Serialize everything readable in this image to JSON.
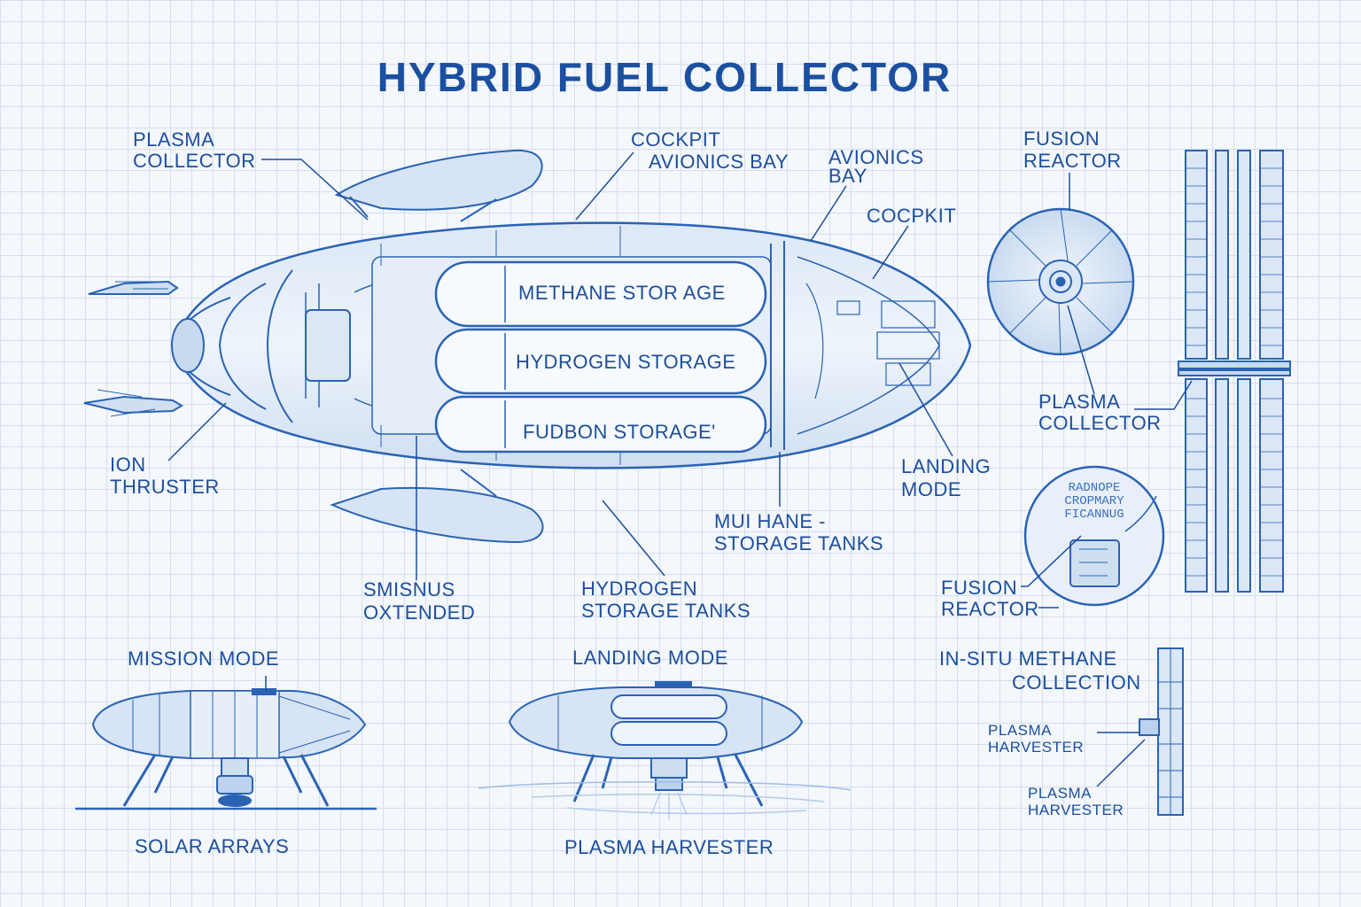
{
  "title": "HYBRID FUEL COLLECTOR",
  "labels": {
    "plasma_collector_1": "PLASMA",
    "plasma_collector_2": "COLLECTOR",
    "cockpit_avionics_1": "COCKPIT",
    "cockpit_avionics_2": "AVIONICS BAY",
    "avionics_bay_1": "AVIONICS",
    "avionics_bay_2": "BAY",
    "cocpkit": "COCPKIT",
    "fusion_reactor_top_1": "FUSION",
    "fusion_reactor_top_2": "REACTOR",
    "plasma_collector_right_1": "PLASMA",
    "plasma_collector_right_2": "COLLECTOR",
    "ion_thruster_1": "ION",
    "ion_thruster_2": "THRUSTER",
    "landing_mode_right_1": "LANDING",
    "landing_mode_right_2": "MODE",
    "methane_tanks_1": "MUI HANE -",
    "methane_tanks_2": "STORAGE TANKS",
    "smisnus_1": "SMISNUS",
    "smisnus_2": "OXTENDED",
    "hydrogen_tanks_1": "HYDROGEN",
    "hydrogen_tanks_2": "STORAGE TANKS",
    "fusion_reactor_bottom_1": "FUSION",
    "fusion_reactor_bottom_2": "REACTOR",
    "mission_mode": "MISSION MODE",
    "landing_mode": "LANDING MODE",
    "insitu_1": "IN-SITU METHANE",
    "insitu_2": "COLLECTION",
    "plasma_harvester_a_1": "PLASMA",
    "plasma_harvester_a_2": "HARVESTER",
    "plasma_harvester_b_1": "PLASMA",
    "plasma_harvester_b_2": "HARVESTER",
    "solar_arrays": "SOLAR ARRAYS",
    "plasma_harvester_bottom": "PLASMA HARVESTER"
  },
  "tanks": {
    "methane": "METHANE STOR AGE",
    "hydrogen": "HYDROGEN STORAGE",
    "fusion": "FUDBON STORAGE'"
  },
  "circle_text": {
    "line1": "RADNOPE",
    "line2": "CROPMARY",
    "line3": "FICANNUG"
  },
  "colors": {
    "ink": "#1c4f9c",
    "grid": "#d3e0ef",
    "paper": "#f4f7fb"
  }
}
